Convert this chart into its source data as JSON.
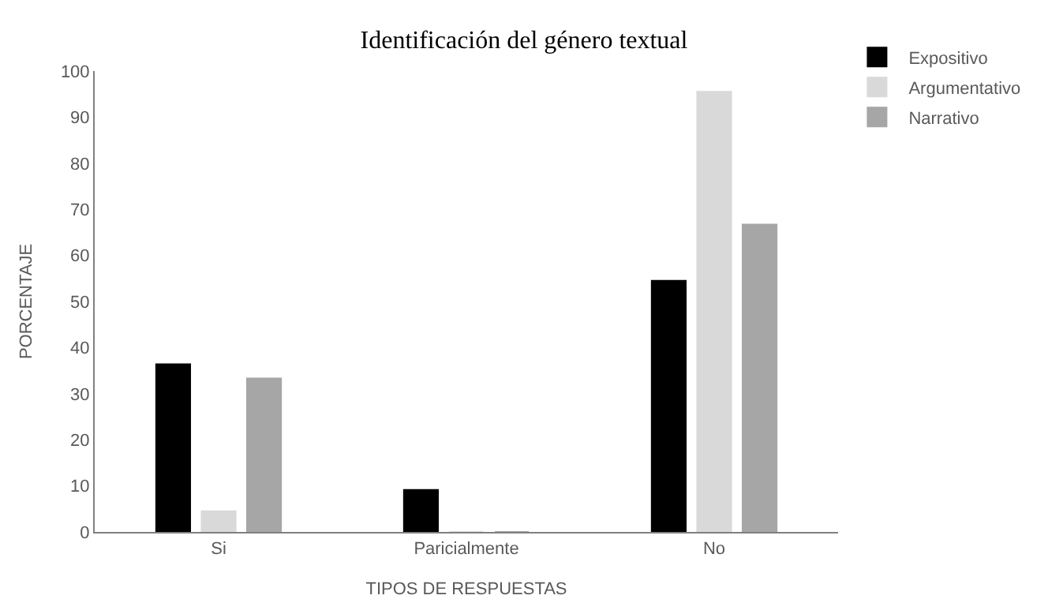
{
  "chart_data": {
    "type": "bar",
    "title": "Identificación del género textual",
    "xlabel": "TIPOS DE RESPUESTAS",
    "ylabel": "PORCENTAJE",
    "categories": [
      "Si",
      "Paricialmente",
      "No"
    ],
    "series": [
      {
        "name": "Expositivo",
        "color": "#000000",
        "values": [
          36.4,
          9.1,
          54.5
        ]
      },
      {
        "name": "Argumentativo",
        "color": "#d9d9d9",
        "values": [
          4.5,
          0,
          95.5
        ]
      },
      {
        "name": "Narrativo",
        "color": "#a6a6a6",
        "values": [
          33.3,
          0,
          66.7
        ]
      }
    ],
    "ylim": [
      0,
      100
    ],
    "yticks": [
      0,
      10,
      20,
      30,
      40,
      50,
      60,
      70,
      80,
      90,
      100
    ],
    "legend": "top right"
  }
}
